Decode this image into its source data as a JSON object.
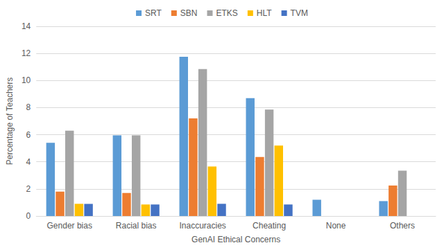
{
  "chart_data": {
    "type": "bar",
    "x_label": "GenAI Ethical Concerns",
    "y_label": "Percentage of Teachers",
    "categories": [
      "Gender bias",
      "Racial bias",
      "Inaccuracies",
      "Cheating",
      "None",
      "Others"
    ],
    "series": [
      {
        "name": "SRT",
        "color": "#5B9BD5",
        "values": [
          5.4,
          5.95,
          11.75,
          8.7,
          1.2,
          1.1
        ]
      },
      {
        "name": "SBN",
        "color": "#ED7D31",
        "values": [
          1.8,
          1.7,
          7.2,
          4.35,
          0,
          2.25
        ]
      },
      {
        "name": "ETKS",
        "color": "#A5A5A5",
        "values": [
          6.3,
          5.95,
          10.85,
          7.85,
          0,
          3.35
        ]
      },
      {
        "name": "HLT",
        "color": "#FFC000",
        "values": [
          0.9,
          0.85,
          3.65,
          5.2,
          0,
          0
        ]
      },
      {
        "name": "TVM",
        "color": "#4472C4",
        "values": [
          0.9,
          0.85,
          0.9,
          0.85,
          0,
          0
        ]
      }
    ],
    "ylim": [
      0,
      14
    ],
    "yticks": [
      0,
      2,
      4,
      6,
      8,
      10,
      12,
      14
    ],
    "grid": true,
    "legend": "top"
  }
}
